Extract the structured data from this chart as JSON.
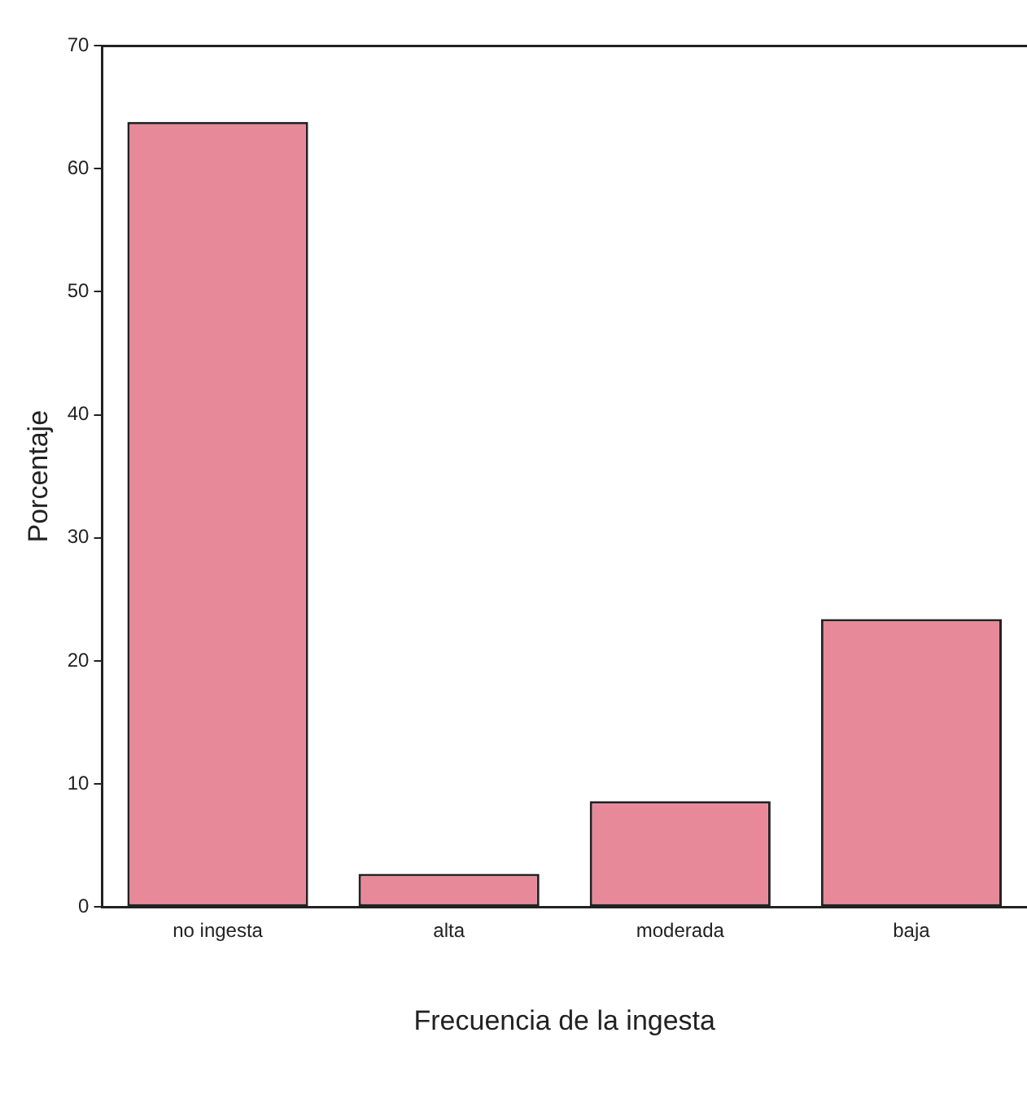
{
  "chart_data": {
    "type": "bar",
    "xlabel": "Frecuencia de la ingesta",
    "ylabel": "Porcentaje",
    "categories": [
      "no ingesta",
      "alta",
      "moderada",
      "baja"
    ],
    "values": [
      63.8,
      2.7,
      8.6,
      23.4
    ],
    "color": "#e8899a",
    "ylim": [
      0,
      70
    ],
    "yticks": [
      0,
      10,
      20,
      30,
      40,
      50,
      60,
      70
    ],
    "grid": false,
    "legend": false
  }
}
